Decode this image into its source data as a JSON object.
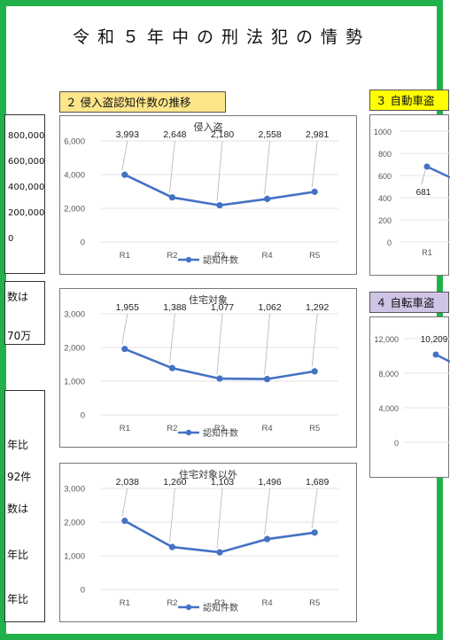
{
  "header": {
    "title": "令和５年中の刑法犯の情勢"
  },
  "sections": {
    "s2": {
      "title": "２ 侵入盗認知件数の推移",
      "bg": "#fde58a"
    },
    "s3": {
      "title": "３ 自動車盗",
      "bg": "#ffff00"
    },
    "s4": {
      "title": "４ 自転車盗",
      "bg": "#cfc4e6"
    }
  },
  "left_panel": {
    "axis_ticks": [
      "800,000",
      "600,000",
      "400,000",
      "200,000",
      "0"
    ],
    "text_top": [
      "数は",
      "70万"
    ],
    "text_bottom": [
      "年比",
      "92件",
      "数は",
      "年比",
      "年比"
    ]
  },
  "right_charts": {
    "auto": {
      "ticks": [
        "1000",
        "800",
        "600",
        "400",
        "200",
        "0"
      ],
      "visible_label": "681",
      "visible_x": "R1"
    },
    "bike": {
      "ticks": [
        "12,000",
        "8,000",
        "4,000",
        "0"
      ],
      "visible_label": "10,209"
    }
  },
  "chart_data": [
    {
      "type": "line",
      "title": "侵入盗",
      "categories": [
        "R1",
        "R2",
        "R3",
        "R4",
        "R5"
      ],
      "series": [
        {
          "name": "認知件数",
          "values": [
            3993,
            2648,
            2180,
            2558,
            2981
          ],
          "labels": [
            "3,993",
            "2,648",
            "2,180",
            "2,558",
            "2,981"
          ]
        }
      ],
      "ylim": [
        0,
        6000
      ],
      "yticks": [
        "6,000",
        "4,000",
        "2,000",
        "0"
      ],
      "legend": "bottom",
      "color": "#4472c4"
    },
    {
      "type": "line",
      "title": "住宅対象",
      "categories": [
        "R1",
        "R2",
        "R3",
        "R4",
        "R5"
      ],
      "series": [
        {
          "name": "認知件数",
          "values": [
            1955,
            1388,
            1077,
            1062,
            1292
          ],
          "labels": [
            "1,955",
            "1,388",
            "1,077",
            "1,062",
            "1,292"
          ]
        }
      ],
      "ylim": [
        0,
        3000
      ],
      "yticks": [
        "3,000",
        "2,000",
        "1,000",
        "0"
      ],
      "legend": "bottom",
      "color": "#4472c4"
    },
    {
      "type": "line",
      "title": "住宅対象以外",
      "categories": [
        "R1",
        "R2",
        "R3",
        "R4",
        "R5"
      ],
      "series": [
        {
          "name": "認知件数",
          "values": [
            2038,
            1260,
            1103,
            1496,
            1689
          ],
          "labels": [
            "2,038",
            "1,260",
            "1,103",
            "1,496",
            "1,689"
          ]
        }
      ],
      "ylim": [
        0,
        3000
      ],
      "yticks": [
        "3,000",
        "2,000",
        "1,000",
        "0"
      ],
      "legend": "bottom",
      "color": "#4472c4"
    }
  ]
}
